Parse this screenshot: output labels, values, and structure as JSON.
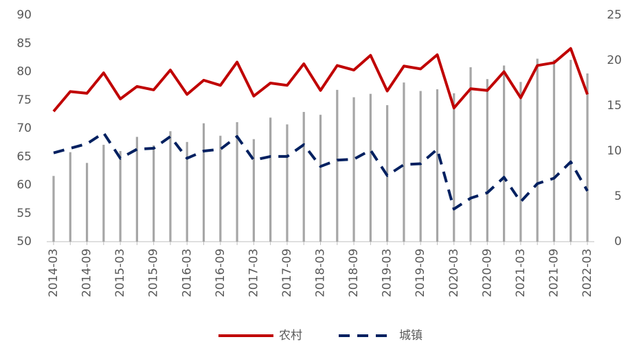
{
  "chart_data": {
    "type": "combo",
    "categories": [
      "2014-03",
      null,
      "2014-09",
      null,
      "2015-03",
      null,
      "2015-09",
      null,
      "2016-03",
      null,
      "2016-09",
      null,
      "2017-03",
      null,
      "2017-09",
      null,
      "2018-03",
      null,
      "2018-09",
      null,
      "2019-03",
      null,
      "2019-09",
      null,
      "2020-03",
      null,
      "2020-09",
      null,
      "2021-03",
      null,
      "2021-09",
      null,
      "2022-03"
    ],
    "series": [
      {
        "kind": "bar",
        "color": "#a6a6a6",
        "values": [
          61.6,
          65.8,
          63.9,
          67.1,
          66,
          68.5,
          67,
          69.5,
          67.6,
          70.9,
          68.7,
          71.1,
          68.1,
          71.9,
          70.7,
          72.9,
          72.4,
          76.8,
          75.5,
          76.1,
          74.1,
          78.1,
          76.6,
          76.9,
          76.2,
          80.8,
          78.7,
          81.1,
          78.2,
          82.3,
          82.1,
          82.1,
          79.7
        ]
      },
      {
        "kind": "line",
        "name": "农村",
        "color": "#c00000",
        "values": [
          73,
          76.5,
          76.2,
          79.8,
          75.2,
          77.4,
          76.8,
          80.3,
          76,
          78.5,
          77.6,
          81.7,
          75.7,
          78,
          77.6,
          81.4,
          76.7,
          81.1,
          80.3,
          82.9,
          76.6,
          81,
          80.5,
          83,
          73.6,
          77,
          76.7,
          80,
          75.4,
          81.1,
          81.6,
          84.1,
          76
        ]
      },
      {
        "kind": "line",
        "name": "城镇",
        "color": "#002060",
        "dashed": true,
        "axis": "y2",
        "values": [
          9.8,
          10.3,
          10.8,
          12,
          9.2,
          10.2,
          10.3,
          11.6,
          9.2,
          10,
          10.2,
          11.6,
          9,
          9.4,
          9.4,
          10.7,
          8.3,
          9,
          9.1,
          10.1,
          7.3,
          8.5,
          8.6,
          10.2,
          3.6,
          4.8,
          5.4,
          7.1,
          4.4,
          6.4,
          7,
          8.8,
          5.6
        ]
      }
    ],
    "ylim": [
      50,
      90
    ],
    "yticks": [
      50,
      55,
      60,
      65,
      70,
      75,
      80,
      85,
      90
    ],
    "y2lim": [
      0,
      25
    ],
    "y2ticks": [
      0,
      5,
      10,
      15,
      20,
      25
    ]
  }
}
